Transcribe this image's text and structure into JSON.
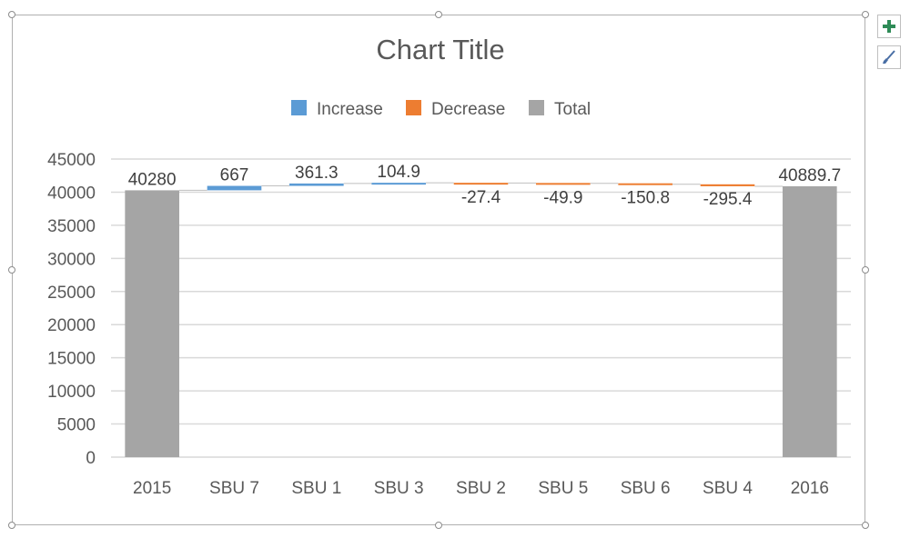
{
  "icons": {
    "add_elements": "plus-icon",
    "styles": "brush-icon"
  },
  "colors": {
    "increase": "#5b9bd5",
    "decrease": "#ed7d31",
    "total": "#a5a5a5",
    "gridline": "#d9d9d9",
    "axis_text": "#595959",
    "plus": "#2e8b57"
  },
  "chart_data": {
    "type": "bar",
    "subtype": "waterfall",
    "title": "Chart Title",
    "xlabel": "",
    "ylabel": "",
    "ylim": [
      0,
      45000
    ],
    "ytick_step": 5000,
    "yticks": [
      "0",
      "5000",
      "10000",
      "15000",
      "20000",
      "25000",
      "30000",
      "35000",
      "40000",
      "45000"
    ],
    "grid": true,
    "legend_position": "top",
    "legend": [
      {
        "name": "Increase",
        "color": "#5b9bd5"
      },
      {
        "name": "Decrease",
        "color": "#ed7d31"
      },
      {
        "name": "Total",
        "color": "#a5a5a5"
      }
    ],
    "categories": [
      "2015",
      "SBU 7",
      "SBU 1",
      "SBU 3",
      "SBU 2",
      "SBU 5",
      "SBU 6",
      "SBU 4",
      "2016"
    ],
    "values": [
      40280,
      667,
      361.3,
      104.9,
      -27.4,
      -49.9,
      -150.8,
      -295.4,
      40889.7
    ],
    "labels": [
      "40280",
      "667",
      "361.3",
      "104.9",
      "-27.4",
      "-49.9",
      "-150.8",
      "-295.4",
      "40889.7"
    ],
    "kinds": [
      "total",
      "increase",
      "increase",
      "increase",
      "decrease",
      "decrease",
      "decrease",
      "decrease",
      "total"
    ]
  }
}
